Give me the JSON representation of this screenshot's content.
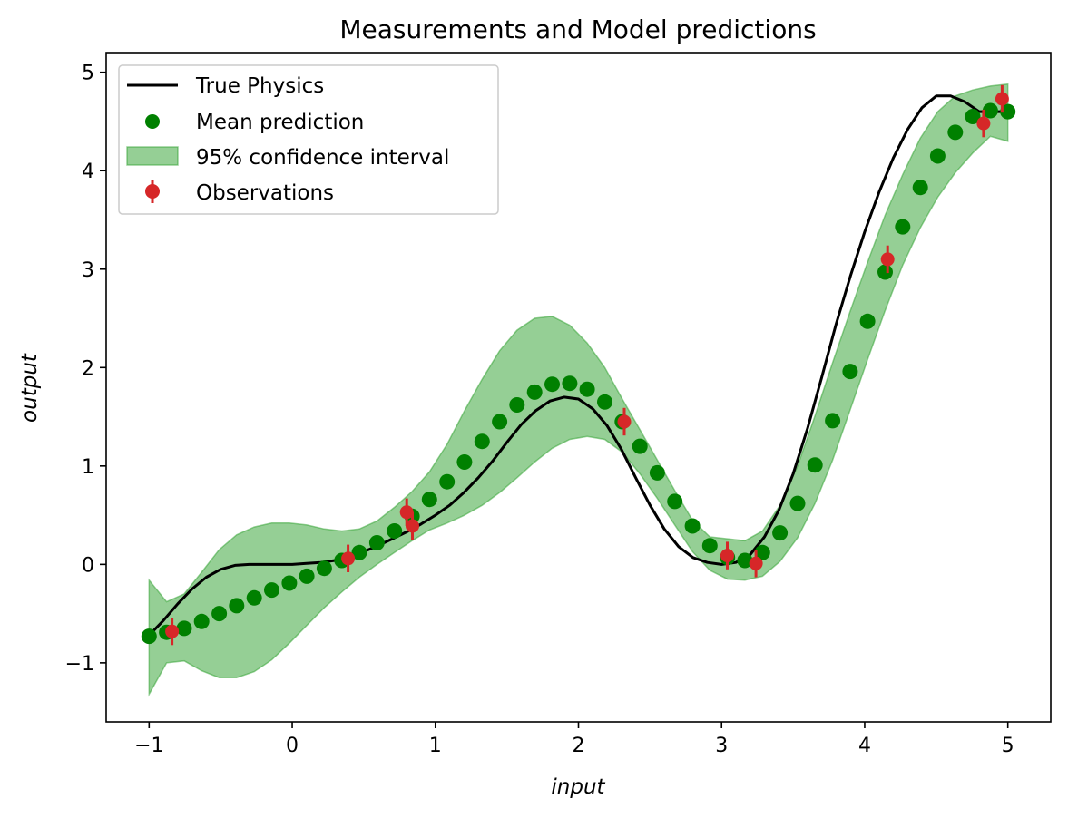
{
  "chart_data": {
    "type": "scatter",
    "title": "Measurements and Model predictions",
    "xlabel": "input",
    "ylabel": "output",
    "xlim": [
      -1.3,
      5.3
    ],
    "ylim": [
      -1.6,
      5.2
    ],
    "xticks": [
      -1,
      0,
      1,
      2,
      3,
      4,
      5
    ],
    "yticks": [
      -1,
      0,
      1,
      2,
      3,
      4,
      5
    ],
    "xtick_labels": [
      "−1",
      "0",
      "1",
      "2",
      "3",
      "4",
      "5"
    ],
    "ytick_labels": [
      "−1",
      "0",
      "1",
      "2",
      "3",
      "4",
      "5"
    ],
    "grid": false,
    "legend_position": "top-left",
    "colors": {
      "true_physics": "#000000",
      "mean_prediction": "#008000",
      "confidence_fill": "#2ca02c",
      "observations": "#d62728"
    },
    "legend": [
      {
        "label": "True Physics",
        "kind": "line"
      },
      {
        "label": "Mean prediction",
        "kind": "marker"
      },
      {
        "label": "95% confidence interval",
        "kind": "patch"
      },
      {
        "label": "Observations",
        "kind": "errorbar"
      }
    ],
    "true_physics": {
      "name": "True Physics",
      "x": [
        -1.0,
        -0.9,
        -0.8,
        -0.7,
        -0.6,
        -0.5,
        -0.4,
        -0.3,
        -0.2,
        -0.1,
        0.0,
        0.1,
        0.2,
        0.3,
        0.4,
        0.5,
        0.6,
        0.7,
        0.8,
        0.9,
        1.0,
        1.1,
        1.2,
        1.3,
        1.4,
        1.5,
        1.6,
        1.7,
        1.8,
        1.9,
        2.0,
        2.1,
        2.2,
        2.3,
        2.4,
        2.5,
        2.6,
        2.7,
        2.8,
        2.9,
        3.0,
        3.1,
        3.2,
        3.3,
        3.4,
        3.5,
        3.6,
        3.7,
        3.8,
        3.9,
        4.0,
        4.1,
        4.2,
        4.3,
        4.4,
        4.5,
        4.6,
        4.7,
        4.8,
        4.9,
        5.0
      ],
      "y": [
        -0.72,
        -0.57,
        -0.4,
        -0.25,
        -0.13,
        -0.05,
        -0.01,
        0.0,
        0.0,
        0.0,
        0.0,
        0.01,
        0.02,
        0.04,
        0.08,
        0.13,
        0.19,
        0.26,
        0.33,
        0.41,
        0.5,
        0.6,
        0.73,
        0.88,
        1.05,
        1.24,
        1.42,
        1.56,
        1.66,
        1.7,
        1.68,
        1.58,
        1.41,
        1.17,
        0.88,
        0.6,
        0.36,
        0.18,
        0.07,
        0.02,
        0.0,
        0.02,
        0.1,
        0.28,
        0.55,
        0.92,
        1.38,
        1.9,
        2.44,
        2.93,
        3.38,
        3.78,
        4.13,
        4.42,
        4.64,
        4.76,
        4.76,
        4.7,
        4.6,
        4.6,
        4.6
      ]
    },
    "mean_prediction": {
      "name": "Mean prediction",
      "x": [
        -1.0,
        -0.878,
        -0.755,
        -0.633,
        -0.51,
        -0.388,
        -0.265,
        -0.143,
        -0.02,
        0.102,
        0.224,
        0.347,
        0.469,
        0.592,
        0.714,
        0.837,
        0.959,
        1.082,
        1.204,
        1.327,
        1.449,
        1.571,
        1.694,
        1.816,
        1.939,
        2.061,
        2.184,
        2.306,
        2.429,
        2.551,
        2.673,
        2.796,
        2.918,
        3.041,
        3.163,
        3.286,
        3.408,
        3.531,
        3.653,
        3.776,
        3.898,
        4.02,
        4.143,
        4.265,
        4.388,
        4.51,
        4.633,
        4.755,
        4.878,
        5.0
      ],
      "y": [
        -0.73,
        -0.69,
        -0.65,
        -0.58,
        -0.5,
        -0.42,
        -0.34,
        -0.26,
        -0.19,
        -0.12,
        -0.04,
        0.04,
        0.12,
        0.22,
        0.34,
        0.49,
        0.66,
        0.84,
        1.04,
        1.25,
        1.45,
        1.62,
        1.75,
        1.83,
        1.84,
        1.78,
        1.65,
        1.45,
        1.2,
        0.93,
        0.64,
        0.39,
        0.19,
        0.07,
        0.04,
        0.12,
        0.32,
        0.62,
        1.01,
        1.46,
        1.96,
        2.47,
        2.97,
        3.43,
        3.83,
        4.15,
        4.39,
        4.55,
        4.61,
        4.6
      ]
    },
    "confidence_interval": {
      "name": "95% confidence interval",
      "x": [
        -1.0,
        -0.878,
        -0.755,
        -0.633,
        -0.51,
        -0.388,
        -0.265,
        -0.143,
        -0.02,
        0.102,
        0.224,
        0.347,
        0.469,
        0.592,
        0.714,
        0.837,
        0.959,
        1.082,
        1.204,
        1.327,
        1.449,
        1.571,
        1.694,
        1.816,
        1.939,
        2.061,
        2.184,
        2.306,
        2.429,
        2.551,
        2.673,
        2.796,
        2.918,
        3.041,
        3.163,
        3.286,
        3.408,
        3.531,
        3.653,
        3.776,
        3.898,
        4.02,
        4.143,
        4.265,
        4.388,
        4.51,
        4.633,
        4.755,
        4.878,
        5.0
      ],
      "upper": [
        -0.16,
        -0.38,
        -0.3,
        -0.08,
        0.15,
        0.3,
        0.38,
        0.42,
        0.42,
        0.4,
        0.36,
        0.34,
        0.36,
        0.44,
        0.58,
        0.74,
        0.94,
        1.22,
        1.56,
        1.88,
        2.17,
        2.38,
        2.5,
        2.52,
        2.43,
        2.25,
        2.0,
        1.68,
        1.37,
        1.06,
        0.75,
        0.45,
        0.28,
        0.26,
        0.24,
        0.34,
        0.6,
        1.0,
        1.51,
        2.05,
        2.57,
        3.07,
        3.55,
        3.96,
        4.33,
        4.6,
        4.76,
        4.82,
        4.86,
        4.88
      ],
      "lower": [
        -1.32,
        -1.0,
        -0.98,
        -1.08,
        -1.15,
        -1.15,
        -1.09,
        -0.97,
        -0.8,
        -0.62,
        -0.44,
        -0.28,
        -0.13,
        0.0,
        0.12,
        0.24,
        0.35,
        0.42,
        0.5,
        0.6,
        0.73,
        0.88,
        1.04,
        1.18,
        1.27,
        1.3,
        1.27,
        1.14,
        0.92,
        0.67,
        0.4,
        0.13,
        -0.06,
        -0.15,
        -0.16,
        -0.12,
        0.03,
        0.27,
        0.62,
        1.06,
        1.57,
        2.08,
        2.58,
        3.04,
        3.42,
        3.73,
        3.98,
        4.18,
        4.35,
        4.3
      ]
    },
    "observations": {
      "name": "Observations",
      "x": [
        -0.84,
        0.39,
        0.8,
        0.84,
        2.32,
        3.04,
        3.24,
        4.16,
        4.83,
        4.96
      ],
      "y": [
        -0.68,
        0.06,
        0.53,
        0.39,
        1.45,
        0.09,
        0.01,
        3.1,
        4.48,
        4.73
      ],
      "error": [
        0.14,
        0.14,
        0.14,
        0.14,
        0.14,
        0.14,
        0.14,
        0.14,
        0.14,
        0.14
      ]
    }
  }
}
